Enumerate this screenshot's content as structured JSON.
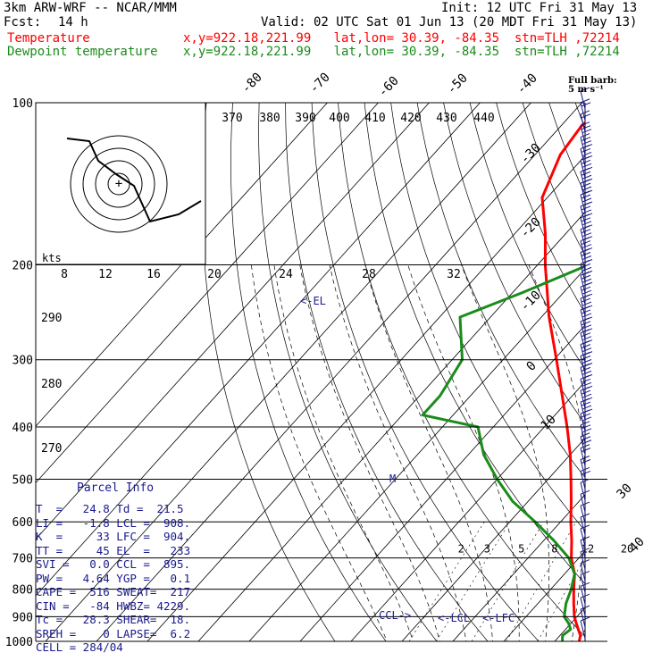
{
  "header": {
    "model": "3km ARW-WRF -- NCAR/MMM",
    "init": "Init: 12 UTC Fri 31 May 13",
    "fcst_label": "Fcst:",
    "fcst_value": "14 h",
    "valid": "Valid: 02 UTC Sat 01 Jun 13 (20 MDT Fri 31 May 13)",
    "temp_name": "Temperature",
    "temp_loc": "x,y=922.18,221.99   lat,lon= 30.39, -84.35  stn=TLH ,72214",
    "dew_name": "Dewpoint temperature",
    "dew_loc": "x,y=922.18,221.99   lat,lon= 30.39, -84.35  stn=TLH ,72214"
  },
  "barb_legend": {
    "line1": "Full barb:",
    "line2": "5 m s⁻¹"
  },
  "parcel_info": {
    "title": "Parcel Info",
    "rows": [
      "T  =   24.8 Td =  21.5",
      "LI =   -1.8 LCL =  908.",
      "K  =     33 LFC =  904.",
      "TT =     45 EL  =   233",
      "SVI =   0.0 CCL =  895.",
      "PW =   4.64 YGP =   0.1",
      "CAPE =  516 SWEAT=  217",
      "CIN =   -84 HWBZ= 4229.",
      "Tc =   28.3 SHEAR=  18.",
      "SREH =    0 LAPSE=  6.2",
      "CELL = 284/04"
    ]
  },
  "colors": {
    "temperature": "#ff0000",
    "dewpoint": "#1a8c1a",
    "label_blue": "#1a1a8c",
    "grid": "#000000"
  },
  "chart_data": {
    "type": "line",
    "diagram": "skew-T log-p",
    "y_axis": {
      "scale": "log",
      "range": [
        1000,
        100
      ],
      "pressure_labels": [
        100,
        200,
        300,
        400,
        500,
        600,
        700,
        800,
        900,
        1000
      ]
    },
    "isotherm_labels": [
      -80,
      -70,
      -60,
      -50,
      -40,
      -30,
      -20,
      -10,
      0,
      10,
      20,
      30,
      40
    ],
    "theta_labels": [
      370,
      380,
      390,
      400,
      410,
      420,
      430,
      440
    ],
    "theta_left_labels": [
      290,
      280,
      270
    ],
    "mixing_ratio_labels": [
      2,
      3,
      5,
      8,
      12,
      20
    ],
    "hodograph_speed_unit": "kts",
    "hodograph_labels": [
      8,
      12,
      16,
      20,
      24,
      28,
      32
    ],
    "annotations": [
      "<-EL",
      "CCL->",
      "<-LCL",
      "<-LFC",
      "M"
    ],
    "series": [
      {
        "name": "Temperature",
        "p": [
          1000,
          975,
          950,
          925,
          900,
          850,
          800,
          750,
          700,
          650,
          600,
          550,
          500,
          450,
          400,
          350,
          300,
          250,
          200,
          175,
          150,
          125,
          110,
          100
        ],
        "t": [
          24.8,
          24,
          22.5,
          21,
          19.5,
          17,
          14.5,
          12,
          8.5,
          5.5,
          2,
          -1.5,
          -5.5,
          -10,
          -15.5,
          -22,
          -29.5,
          -38.5,
          -48.5,
          -54,
          -61,
          -65,
          -66,
          -64
        ]
      },
      {
        "name": "Dewpoint temperature",
        "p": [
          1000,
          975,
          950,
          925,
          900,
          850,
          800,
          750,
          700,
          650,
          600,
          550,
          500,
          450,
          400,
          380,
          350,
          300,
          250,
          225,
          200,
          175,
          150,
          125,
          110,
          100
        ],
        "t": [
          21.5,
          20.5,
          21,
          19.5,
          17.5,
          15.5,
          14,
          12,
          8,
          2,
          -5,
          -13,
          -20,
          -27,
          -33,
          -46,
          -46,
          -48,
          -56,
          -48,
          -40,
          -36,
          -36,
          -38,
          -40,
          -42
        ]
      }
    ],
    "wind_barb_speeds_ms": [
      5,
      10,
      12,
      15,
      20,
      20,
      20,
      20,
      20,
      20,
      20,
      20,
      20,
      20,
      20,
      20,
      20,
      20,
      20,
      20,
      20,
      20,
      20,
      20,
      20,
      20,
      20,
      20,
      15,
      15,
      15,
      10,
      10,
      10,
      5,
      5,
      5,
      5,
      5,
      5,
      5,
      5,
      5,
      5,
      5,
      5,
      5
    ]
  }
}
